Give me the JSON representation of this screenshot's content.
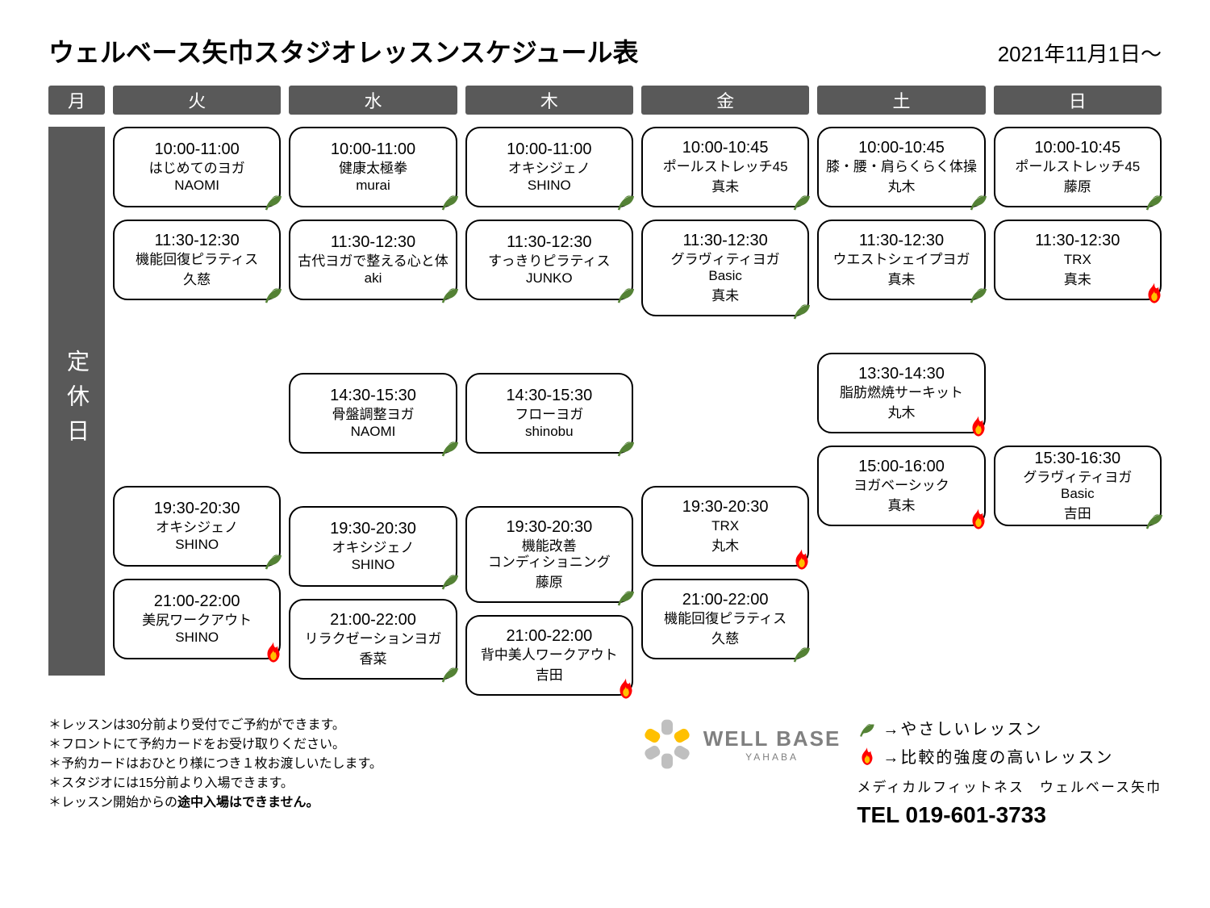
{
  "title": "ウェルベース矢巾スタジオレッスンスケジュール表",
  "date_range": "2021年11月1日～",
  "days": [
    "月",
    "火",
    "水",
    "木",
    "金",
    "土",
    "日"
  ],
  "closed_label": "定休日",
  "schedule": {
    "tue": [
      {
        "time": "10:00-11:00",
        "name": "はじめてのヨガ",
        "instructor": "NAOMI",
        "icon": "leaf"
      },
      {
        "time": "11:30-12:30",
        "name": "機能回復ピラティス",
        "instructor": "久慈",
        "icon": "leaf"
      },
      {
        "time": "19:30-20:30",
        "name": "オキシジェノ",
        "instructor": "SHINO",
        "icon": "leaf"
      },
      {
        "time": "21:00-22:00",
        "name": "美尻ワークアウト",
        "instructor": "SHINO",
        "icon": "flame"
      }
    ],
    "wed": [
      {
        "time": "10:00-11:00",
        "name": "健康太極拳",
        "instructor": "murai",
        "icon": "leaf"
      },
      {
        "time": "11:30-12:30",
        "name": "古代ヨガで整える心と体",
        "instructor": "aki",
        "icon": "leaf"
      },
      {
        "time": "14:30-15:30",
        "name": "骨盤調整ヨガ",
        "instructor": "NAOMI",
        "icon": "leaf"
      },
      {
        "time": "19:30-20:30",
        "name": "オキシジェノ",
        "instructor": "SHINO",
        "icon": "leaf"
      },
      {
        "time": "21:00-22:00",
        "name": "リラクゼーションヨガ",
        "instructor": "香菜",
        "icon": "leaf"
      }
    ],
    "thu": [
      {
        "time": "10:00-11:00",
        "name": "オキシジェノ",
        "instructor": "SHINO",
        "icon": "leaf"
      },
      {
        "time": "11:30-12:30",
        "name": "すっきりピラティス",
        "instructor": "JUNKO",
        "icon": "leaf"
      },
      {
        "time": "14:30-15:30",
        "name": "フローヨガ",
        "instructor": "shinobu",
        "icon": "leaf"
      },
      {
        "time": "19:30-20:30",
        "name": "機能改善コンディショニング",
        "instructor": "藤原",
        "icon": "leaf"
      },
      {
        "time": "21:00-22:00",
        "name": "背中美人ワークアウト",
        "instructor": "吉田",
        "icon": "flame"
      }
    ],
    "fri": [
      {
        "time": "10:00-10:45",
        "name": "ポールストレッチ45",
        "instructor": "真未",
        "icon": "leaf"
      },
      {
        "time": "11:30-12:30",
        "name": "グラヴィティヨガBasic",
        "instructor": "真未",
        "icon": "leaf"
      },
      {
        "time": "19:30-20:30",
        "name": "TRX",
        "instructor": "丸木",
        "icon": "flame"
      },
      {
        "time": "21:00-22:00",
        "name": "機能回復ピラティス",
        "instructor": "久慈",
        "icon": "leaf"
      }
    ],
    "sat": [
      {
        "time": "10:00-10:45",
        "name": "膝・腰・肩らくらく体操",
        "instructor": "丸木",
        "icon": "leaf"
      },
      {
        "time": "11:30-12:30",
        "name": "ウエストシェイプヨガ",
        "instructor": "真未",
        "icon": "leaf"
      },
      {
        "time": "13:30-14:30",
        "name": "脂肪燃焼サーキット",
        "instructor": "丸木",
        "icon": "flame"
      },
      {
        "time": "15:00-16:00",
        "name": "ヨガベーシック",
        "instructor": "真未",
        "icon": "flame"
      }
    ],
    "sun": [
      {
        "time": "10:00-10:45",
        "name": "ポールストレッチ45",
        "instructor": "藤原",
        "icon": "leaf"
      },
      {
        "time": "11:30-12:30",
        "name": "TRX",
        "instructor": "真未",
        "icon": "flame"
      },
      {
        "time": "15:30-16:30",
        "name": "グラヴィティヨガBasic",
        "instructor": "吉田",
        "icon": "leaf"
      }
    ]
  },
  "legend": {
    "leaf": "→やさしいレッスン",
    "flame": "→比較的強度の高いレッスン"
  },
  "notes": [
    "＊レッスンは30分前より受付でご予約ができます。",
    "＊フロントにて予約カードをお受け取りください。",
    "＊予約カードはおひとり様につき１枚お渡しいたします。",
    "＊スタジオには15分前より入場できます。"
  ],
  "note_bold_prefix": "＊レッスン開始からの",
  "note_bold": "途中入場はできません。",
  "logo": {
    "main": "WELL BASE",
    "sub": "YAHABA"
  },
  "medfit": "メディカルフィットネス　ウェルベース矢巾",
  "tel": "TEL 019-601-3733",
  "colors": {
    "header_bg": "#595959",
    "leaf": "#548235",
    "flame": "#ff0000",
    "flame_inner": "#ffc000",
    "text": "#000000"
  }
}
